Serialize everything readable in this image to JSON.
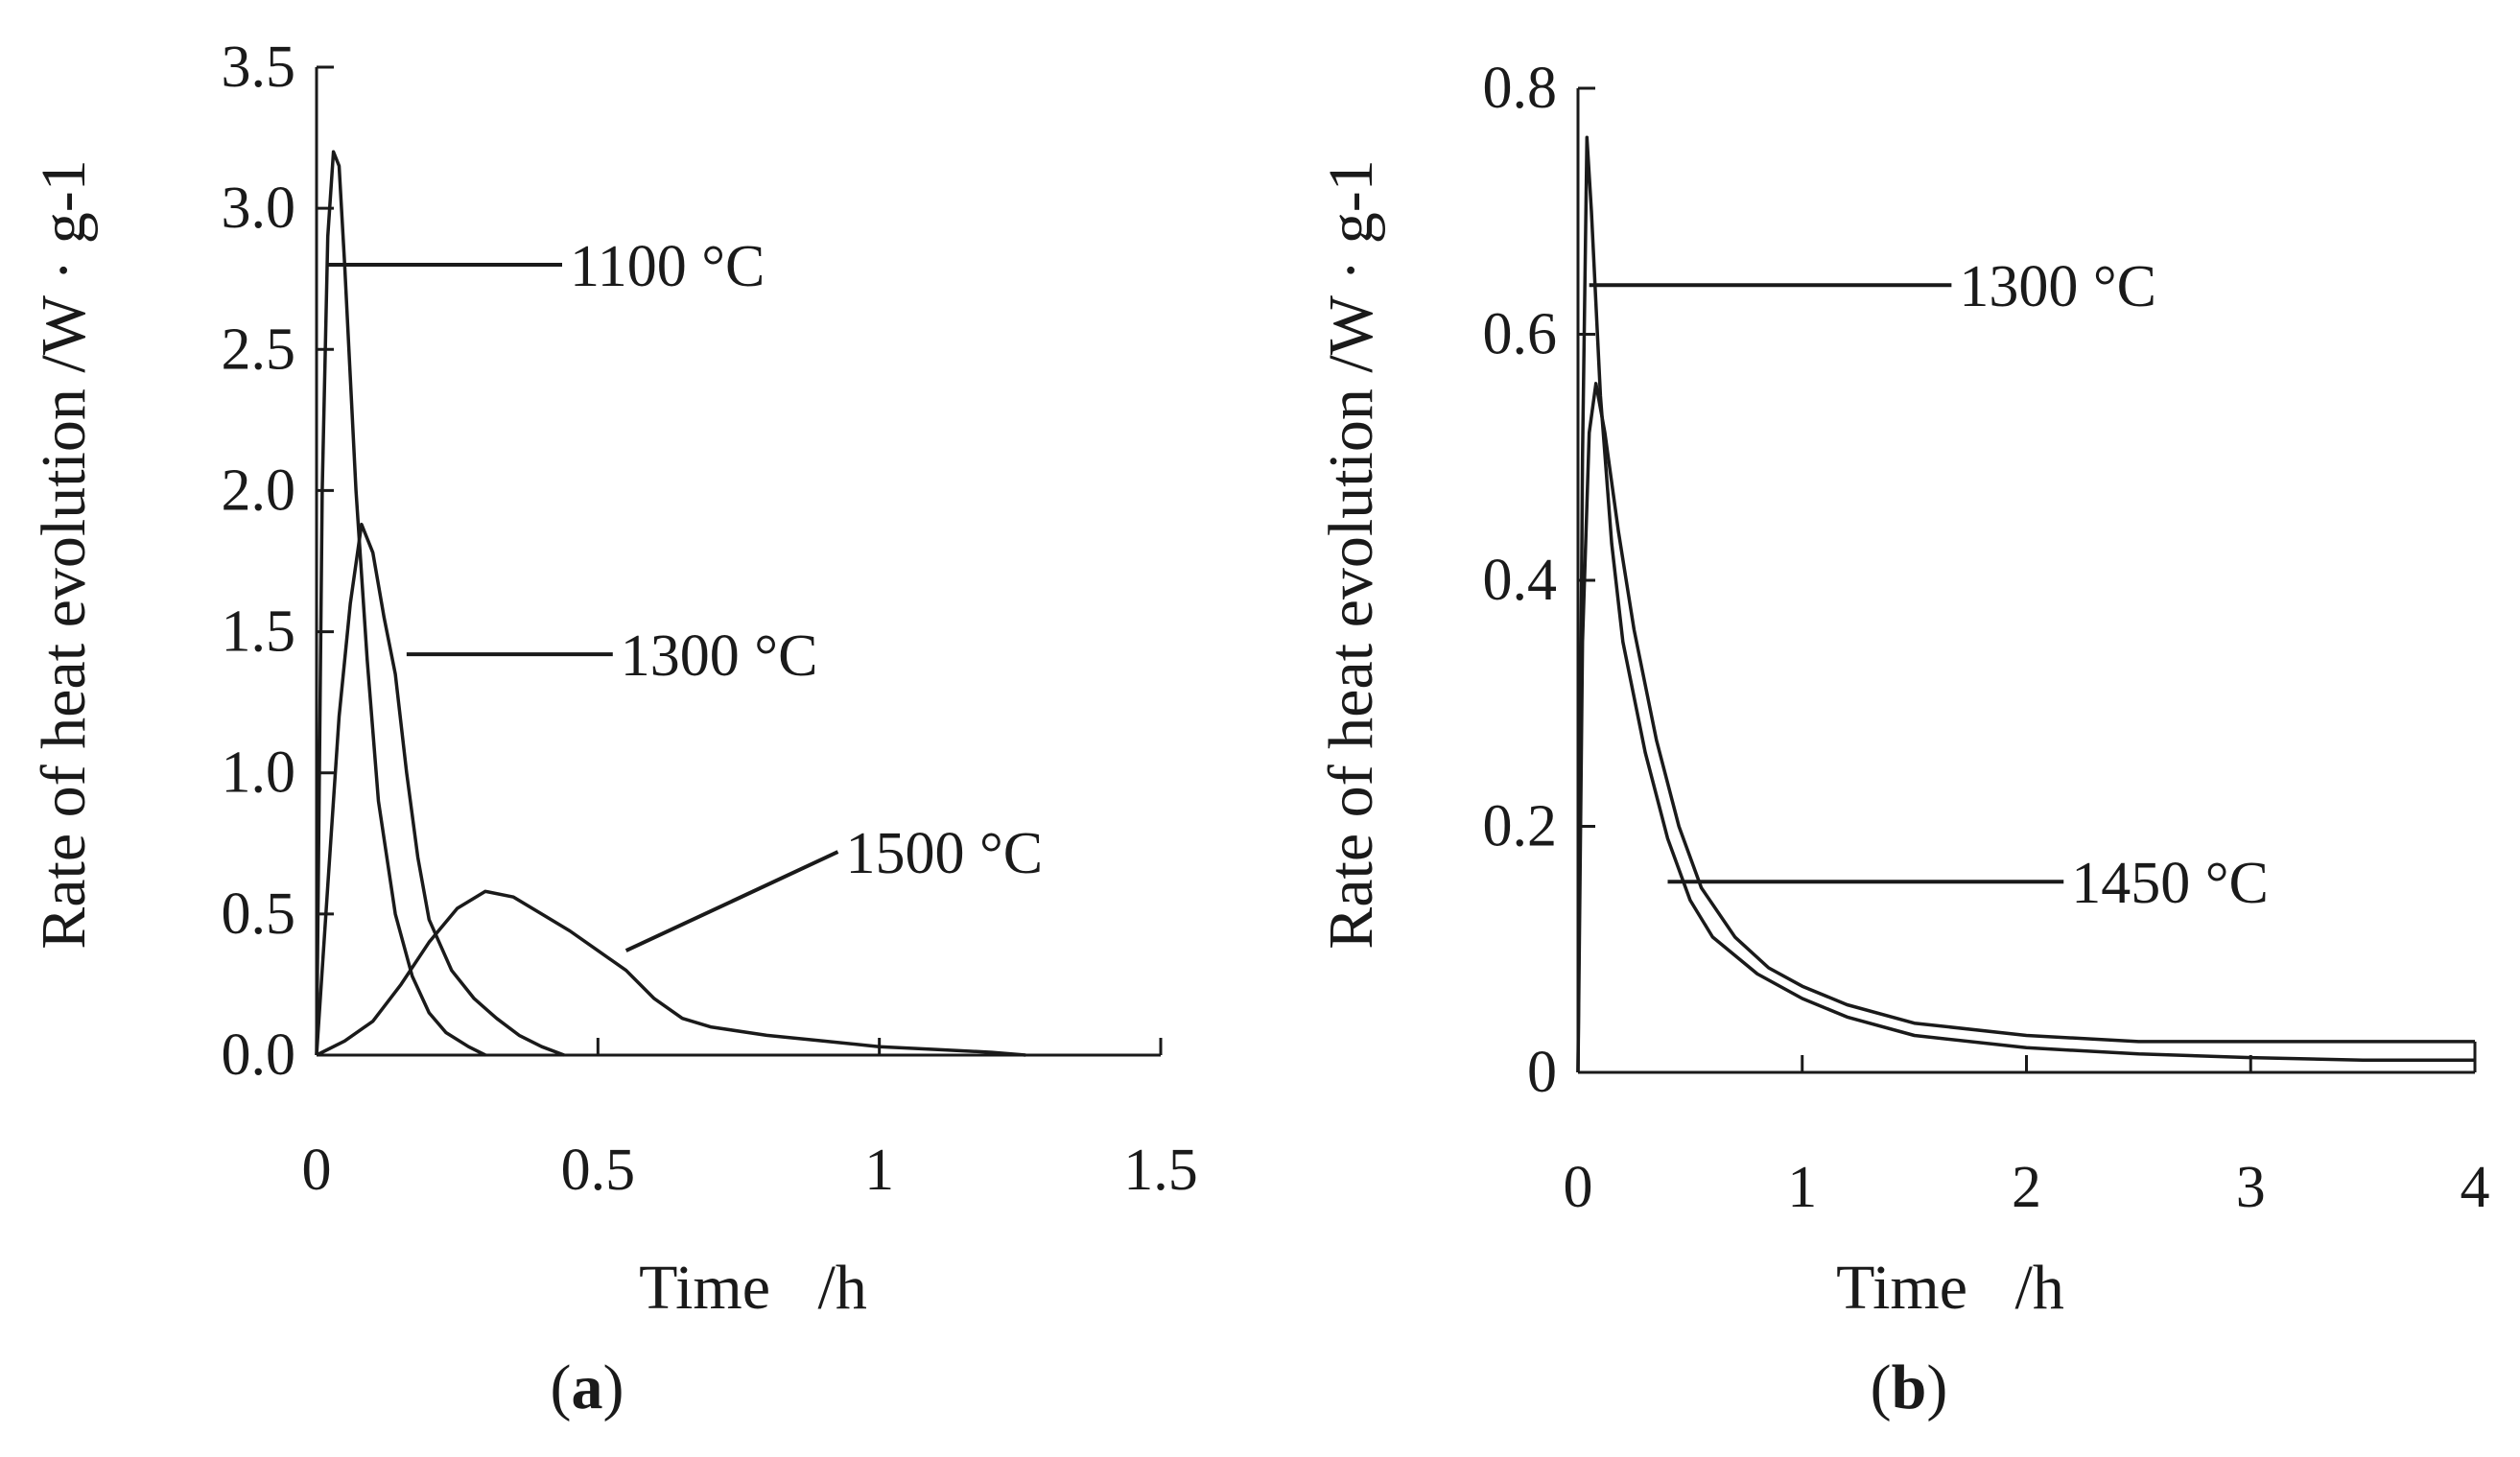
{
  "chart_data": [
    {
      "id": "a",
      "type": "line",
      "panel_label": "a",
      "xlabel": "Time   /h",
      "ylabel": "Rate of heat evolution  /W · g-1",
      "xlim": [
        0,
        1.5
      ],
      "ylim": [
        0,
        3.5
      ],
      "x_ticks": [
        0,
        0.5,
        1,
        1.5
      ],
      "x_tick_labels": [
        "0",
        "0.5",
        "1",
        "1.5"
      ],
      "y_ticks": [
        0,
        0.5,
        1.0,
        1.5,
        2.0,
        2.5,
        3.0,
        3.5
      ],
      "y_tick_labels": [
        "0.0",
        "0.5",
        "1.0",
        "1.5",
        "2.0",
        "2.5",
        "3.0",
        "3.5"
      ],
      "series": [
        {
          "name": "1100 °C",
          "x": [
            0,
            0.01,
            0.02,
            0.03,
            0.04,
            0.05,
            0.07,
            0.09,
            0.11,
            0.14,
            0.17,
            0.2,
            0.23,
            0.27,
            0.3
          ],
          "y": [
            0,
            2.0,
            2.9,
            3.2,
            3.15,
            2.8,
            2.0,
            1.4,
            0.9,
            0.5,
            0.28,
            0.15,
            0.08,
            0.03,
            0.0
          ]
        },
        {
          "name": "1300 °C",
          "x": [
            0,
            0.02,
            0.04,
            0.06,
            0.08,
            0.1,
            0.12,
            0.14,
            0.16,
            0.18,
            0.2,
            0.24,
            0.28,
            0.32,
            0.36,
            0.4,
            0.44
          ],
          "y": [
            0,
            0.6,
            1.2,
            1.6,
            1.88,
            1.78,
            1.55,
            1.35,
            1.0,
            0.7,
            0.48,
            0.3,
            0.2,
            0.13,
            0.07,
            0.03,
            0.0
          ]
        },
        {
          "name": "1500 °C",
          "x": [
            0,
            0.05,
            0.1,
            0.15,
            0.2,
            0.25,
            0.3,
            0.35,
            0.4,
            0.45,
            0.5,
            0.55,
            0.6,
            0.65,
            0.7,
            0.8,
            0.9,
            1.0,
            1.1,
            1.2,
            1.26
          ],
          "y": [
            0,
            0.05,
            0.12,
            0.25,
            0.4,
            0.52,
            0.58,
            0.56,
            0.5,
            0.44,
            0.37,
            0.3,
            0.2,
            0.13,
            0.1,
            0.07,
            0.05,
            0.03,
            0.02,
            0.01,
            0.0
          ]
        }
      ],
      "annotations": [
        {
          "text": "1100 °C",
          "target": [
            0.02,
            2.8
          ],
          "label_at": [
            0.45,
            2.8
          ]
        },
        {
          "text": "1300 °C",
          "target": [
            0.16,
            1.42
          ],
          "label_at": [
            0.54,
            1.42
          ]
        },
        {
          "text": "1500 °C",
          "target": [
            0.55,
            0.37
          ],
          "label_at": [
            0.94,
            0.72
          ]
        }
      ]
    },
    {
      "id": "b",
      "type": "line",
      "panel_label": "b",
      "xlabel": "Time   /h",
      "ylabel": "Rate of heat evolution  /W · g-1",
      "xlim": [
        0,
        4
      ],
      "ylim": [
        0,
        0.8
      ],
      "x_ticks": [
        0,
        1,
        2,
        3,
        4
      ],
      "x_tick_labels": [
        "0",
        "1",
        "2",
        "3",
        "4"
      ],
      "y_ticks": [
        0,
        0.2,
        0.4,
        0.6,
        0.8
      ],
      "y_tick_labels": [
        "0",
        "0.2",
        "0.4",
        "0.6",
        "0.8"
      ],
      "series": [
        {
          "name": "1300 °C",
          "x": [
            0,
            0.02,
            0.04,
            0.06,
            0.1,
            0.15,
            0.2,
            0.3,
            0.4,
            0.5,
            0.6,
            0.8,
            1.0,
            1.2,
            1.5,
            2.0,
            2.5,
            3.0,
            3.5,
            4.0
          ],
          "y": [
            0,
            0.5,
            0.76,
            0.7,
            0.55,
            0.43,
            0.35,
            0.26,
            0.19,
            0.14,
            0.11,
            0.08,
            0.06,
            0.045,
            0.03,
            0.02,
            0.015,
            0.012,
            0.01,
            0.01
          ]
        },
        {
          "name": "1450 °C",
          "x": [
            0,
            0.02,
            0.05,
            0.08,
            0.12,
            0.18,
            0.25,
            0.35,
            0.45,
            0.55,
            0.7,
            0.85,
            1.0,
            1.2,
            1.5,
            2.0,
            2.5,
            3.0,
            3.5,
            4.0
          ],
          "y": [
            0,
            0.35,
            0.52,
            0.56,
            0.52,
            0.44,
            0.36,
            0.27,
            0.2,
            0.15,
            0.11,
            0.085,
            0.07,
            0.055,
            0.04,
            0.03,
            0.025,
            0.025,
            0.025,
            0.025
          ]
        }
      ],
      "annotations": [
        {
          "text": "1300 °C",
          "target": [
            0.05,
            0.64
          ],
          "label_at": [
            1.7,
            0.64
          ]
        },
        {
          "text": "1450 °C",
          "target": [
            0.4,
            0.155
          ],
          "label_at": [
            2.2,
            0.155
          ]
        }
      ]
    }
  ]
}
